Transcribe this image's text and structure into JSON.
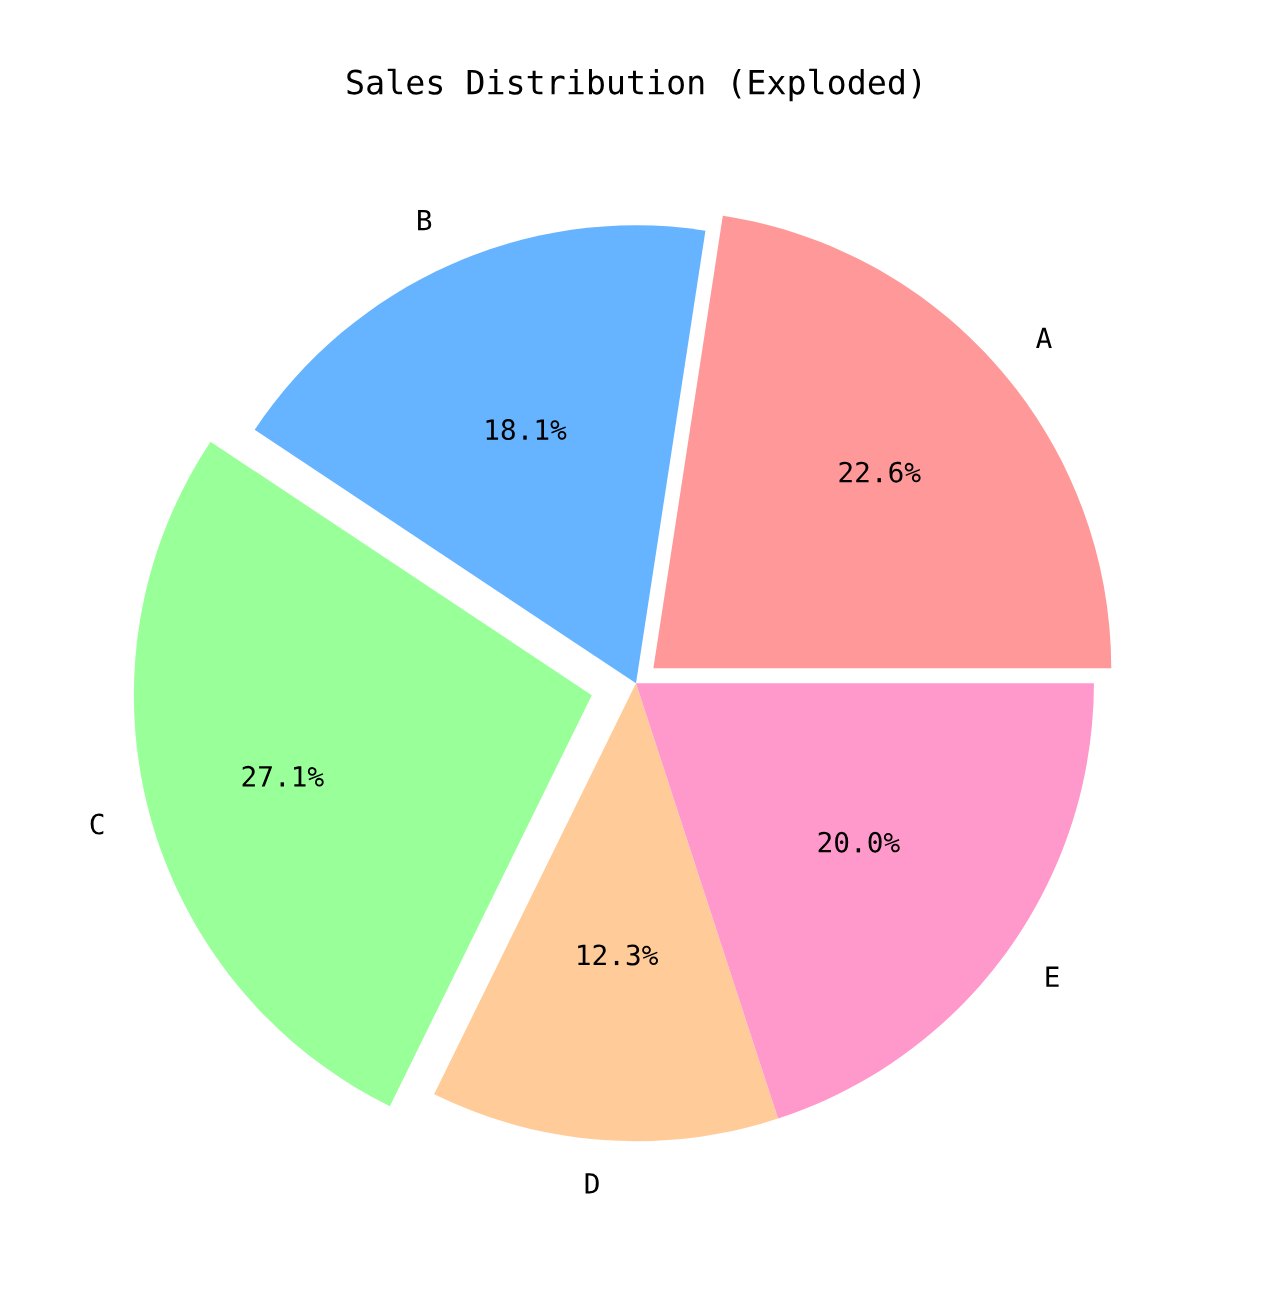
{
  "chart_data": {
    "type": "pie",
    "title": "Sales Distribution (Exploded)",
    "categories": [
      "A",
      "B",
      "C",
      "D",
      "E"
    ],
    "values": [
      22.6,
      18.1,
      27.1,
      12.3,
      20.0
    ],
    "value_labels": [
      "22.6%",
      "18.1%",
      "27.1%",
      "12.3%",
      "20.0%"
    ],
    "colors": [
      "#ff9999",
      "#66b3ff",
      "#99ff99",
      "#ffcc99",
      "#ff99cc"
    ],
    "legend": false
  }
}
